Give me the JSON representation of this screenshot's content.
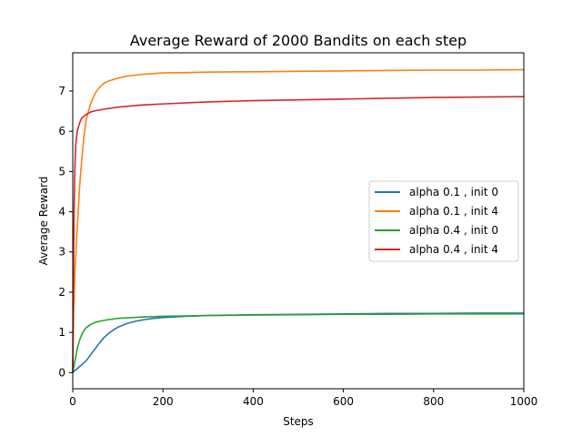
{
  "chart_data": {
    "type": "line",
    "title": "Average Reward of 2000 Bandits on each step",
    "xlabel": "Steps",
    "ylabel": "Average Reward",
    "xlim": [
      0,
      1000
    ],
    "ylim": [
      -0.4,
      7.95
    ],
    "xticks": [
      0,
      200,
      400,
      600,
      800,
      1000
    ],
    "yticks": [
      0,
      1,
      2,
      3,
      4,
      5,
      6,
      7
    ],
    "grid": false,
    "legend_position": "center-right",
    "series": [
      {
        "name": "alpha 0.1 , init 0",
        "color": "#1f77b4",
        "points": [
          [
            0,
            0.0
          ],
          [
            10,
            0.1
          ],
          [
            20,
            0.2
          ],
          [
            30,
            0.3
          ],
          [
            40,
            0.45
          ],
          [
            50,
            0.6
          ],
          [
            60,
            0.75
          ],
          [
            70,
            0.88
          ],
          [
            80,
            0.98
          ],
          [
            90,
            1.06
          ],
          [
            100,
            1.13
          ],
          [
            120,
            1.22
          ],
          [
            140,
            1.28
          ],
          [
            160,
            1.32
          ],
          [
            180,
            1.35
          ],
          [
            200,
            1.37
          ],
          [
            250,
            1.4
          ],
          [
            300,
            1.42
          ],
          [
            400,
            1.44
          ],
          [
            500,
            1.45
          ],
          [
            600,
            1.46
          ],
          [
            700,
            1.47
          ],
          [
            800,
            1.47
          ],
          [
            900,
            1.48
          ],
          [
            1000,
            1.48
          ]
        ]
      },
      {
        "name": "alpha 0.1 , init 4",
        "color": "#ff7f0e",
        "points": [
          [
            0,
            0.0
          ],
          [
            2,
            1.5
          ],
          [
            5,
            2.6
          ],
          [
            10,
            3.6
          ],
          [
            15,
            4.6
          ],
          [
            20,
            5.3
          ],
          [
            25,
            5.9
          ],
          [
            30,
            6.3
          ],
          [
            40,
            6.7
          ],
          [
            50,
            6.95
          ],
          [
            60,
            7.1
          ],
          [
            70,
            7.2
          ],
          [
            80,
            7.25
          ],
          [
            100,
            7.32
          ],
          [
            120,
            7.37
          ],
          [
            150,
            7.41
          ],
          [
            200,
            7.45
          ],
          [
            250,
            7.46
          ],
          [
            300,
            7.47
          ],
          [
            400,
            7.48
          ],
          [
            500,
            7.49
          ],
          [
            600,
            7.5
          ],
          [
            700,
            7.51
          ],
          [
            800,
            7.52
          ],
          [
            900,
            7.52
          ],
          [
            1000,
            7.53
          ]
        ]
      },
      {
        "name": "alpha 0.4 , init 0",
        "color": "#2ca02c",
        "points": [
          [
            0,
            0.0
          ],
          [
            5,
            0.3
          ],
          [
            10,
            0.6
          ],
          [
            15,
            0.8
          ],
          [
            20,
            0.95
          ],
          [
            25,
            1.05
          ],
          [
            30,
            1.12
          ],
          [
            40,
            1.2
          ],
          [
            50,
            1.25
          ],
          [
            60,
            1.28
          ],
          [
            80,
            1.32
          ],
          [
            100,
            1.35
          ],
          [
            150,
            1.38
          ],
          [
            200,
            1.4
          ],
          [
            300,
            1.42
          ],
          [
            400,
            1.43
          ],
          [
            500,
            1.44
          ],
          [
            600,
            1.45
          ],
          [
            700,
            1.45
          ],
          [
            800,
            1.46
          ],
          [
            900,
            1.46
          ],
          [
            1000,
            1.46
          ]
        ]
      },
      {
        "name": "alpha 0.4 , init 4",
        "color": "#d62728",
        "points": [
          [
            0,
            0.0
          ],
          [
            1,
            1.5
          ],
          [
            2,
            3.0
          ],
          [
            3,
            4.0
          ],
          [
            4,
            4.7
          ],
          [
            5,
            5.2
          ],
          [
            7,
            5.7
          ],
          [
            10,
            6.0
          ],
          [
            15,
            6.2
          ],
          [
            20,
            6.33
          ],
          [
            30,
            6.42
          ],
          [
            40,
            6.48
          ],
          [
            50,
            6.51
          ],
          [
            70,
            6.55
          ],
          [
            100,
            6.6
          ],
          [
            150,
            6.65
          ],
          [
            200,
            6.68
          ],
          [
            300,
            6.73
          ],
          [
            400,
            6.76
          ],
          [
            500,
            6.78
          ],
          [
            600,
            6.8
          ],
          [
            700,
            6.82
          ],
          [
            800,
            6.84
          ],
          [
            900,
            6.85
          ],
          [
            1000,
            6.86
          ]
        ]
      }
    ]
  }
}
